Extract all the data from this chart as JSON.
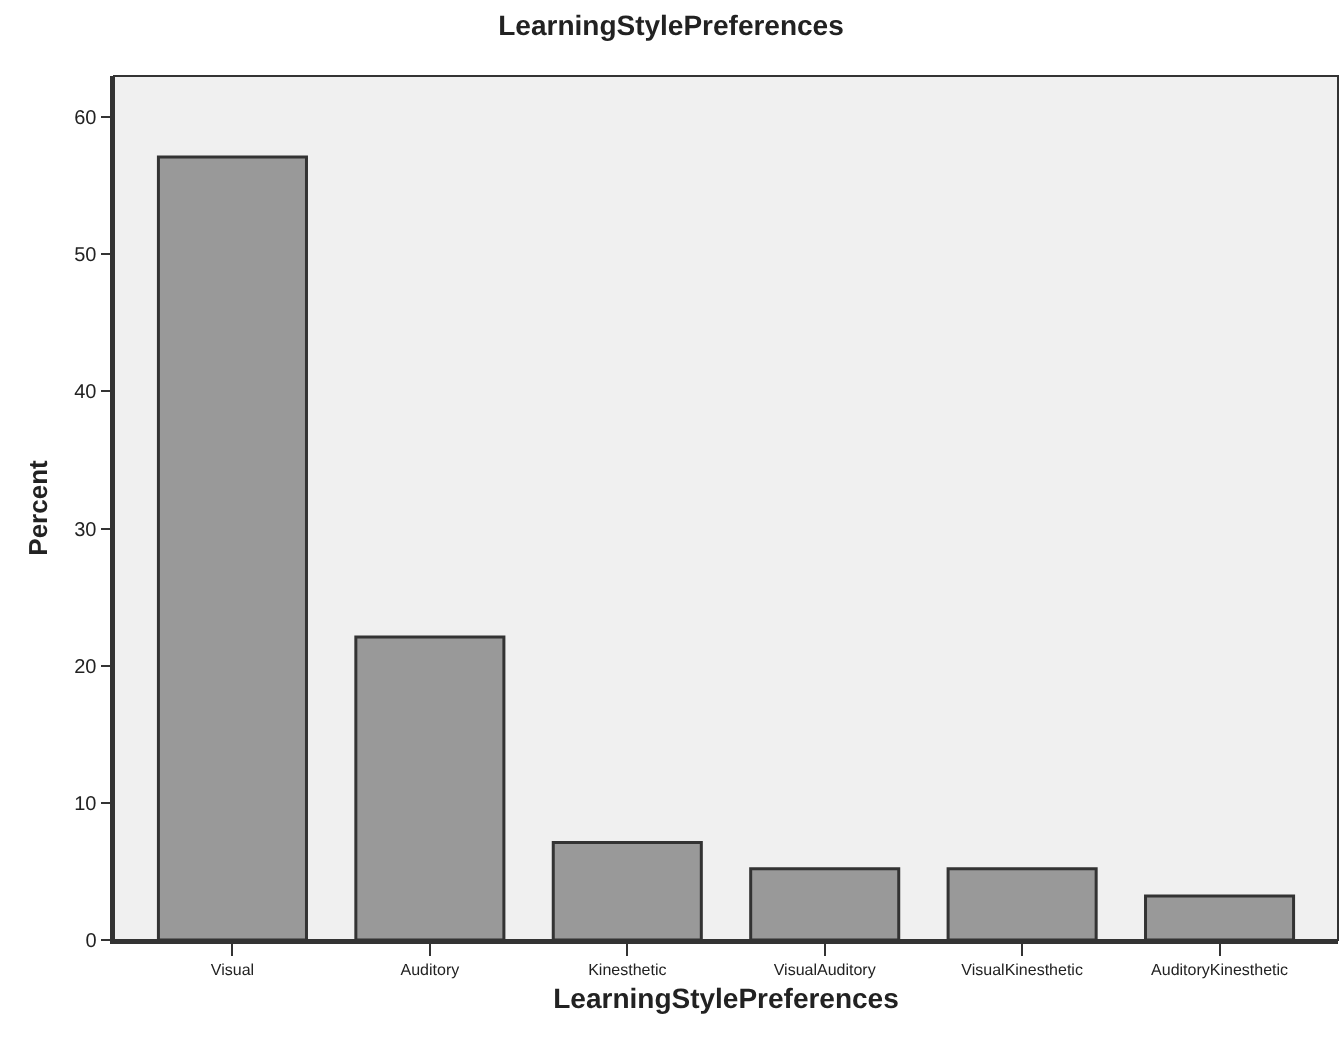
{
  "chart_data": {
    "type": "bar",
    "title": "LearningStylePreferences",
    "xlabel": "LearningStylePreferences",
    "ylabel": "Percent",
    "categories": [
      "Visual",
      "Auditory",
      "Kinesthetic",
      "VisualAuditory",
      "VisualKinesthetic",
      "AuditoryKinesthetic"
    ],
    "values": [
      57.1,
      22.1,
      7.1,
      5.2,
      5.2,
      3.2
    ],
    "color": "#999999",
    "ylim": [
      0,
      63
    ],
    "yticks": [
      0,
      10,
      20,
      30,
      40,
      50,
      60
    ],
    "grid": false,
    "legend": false
  }
}
